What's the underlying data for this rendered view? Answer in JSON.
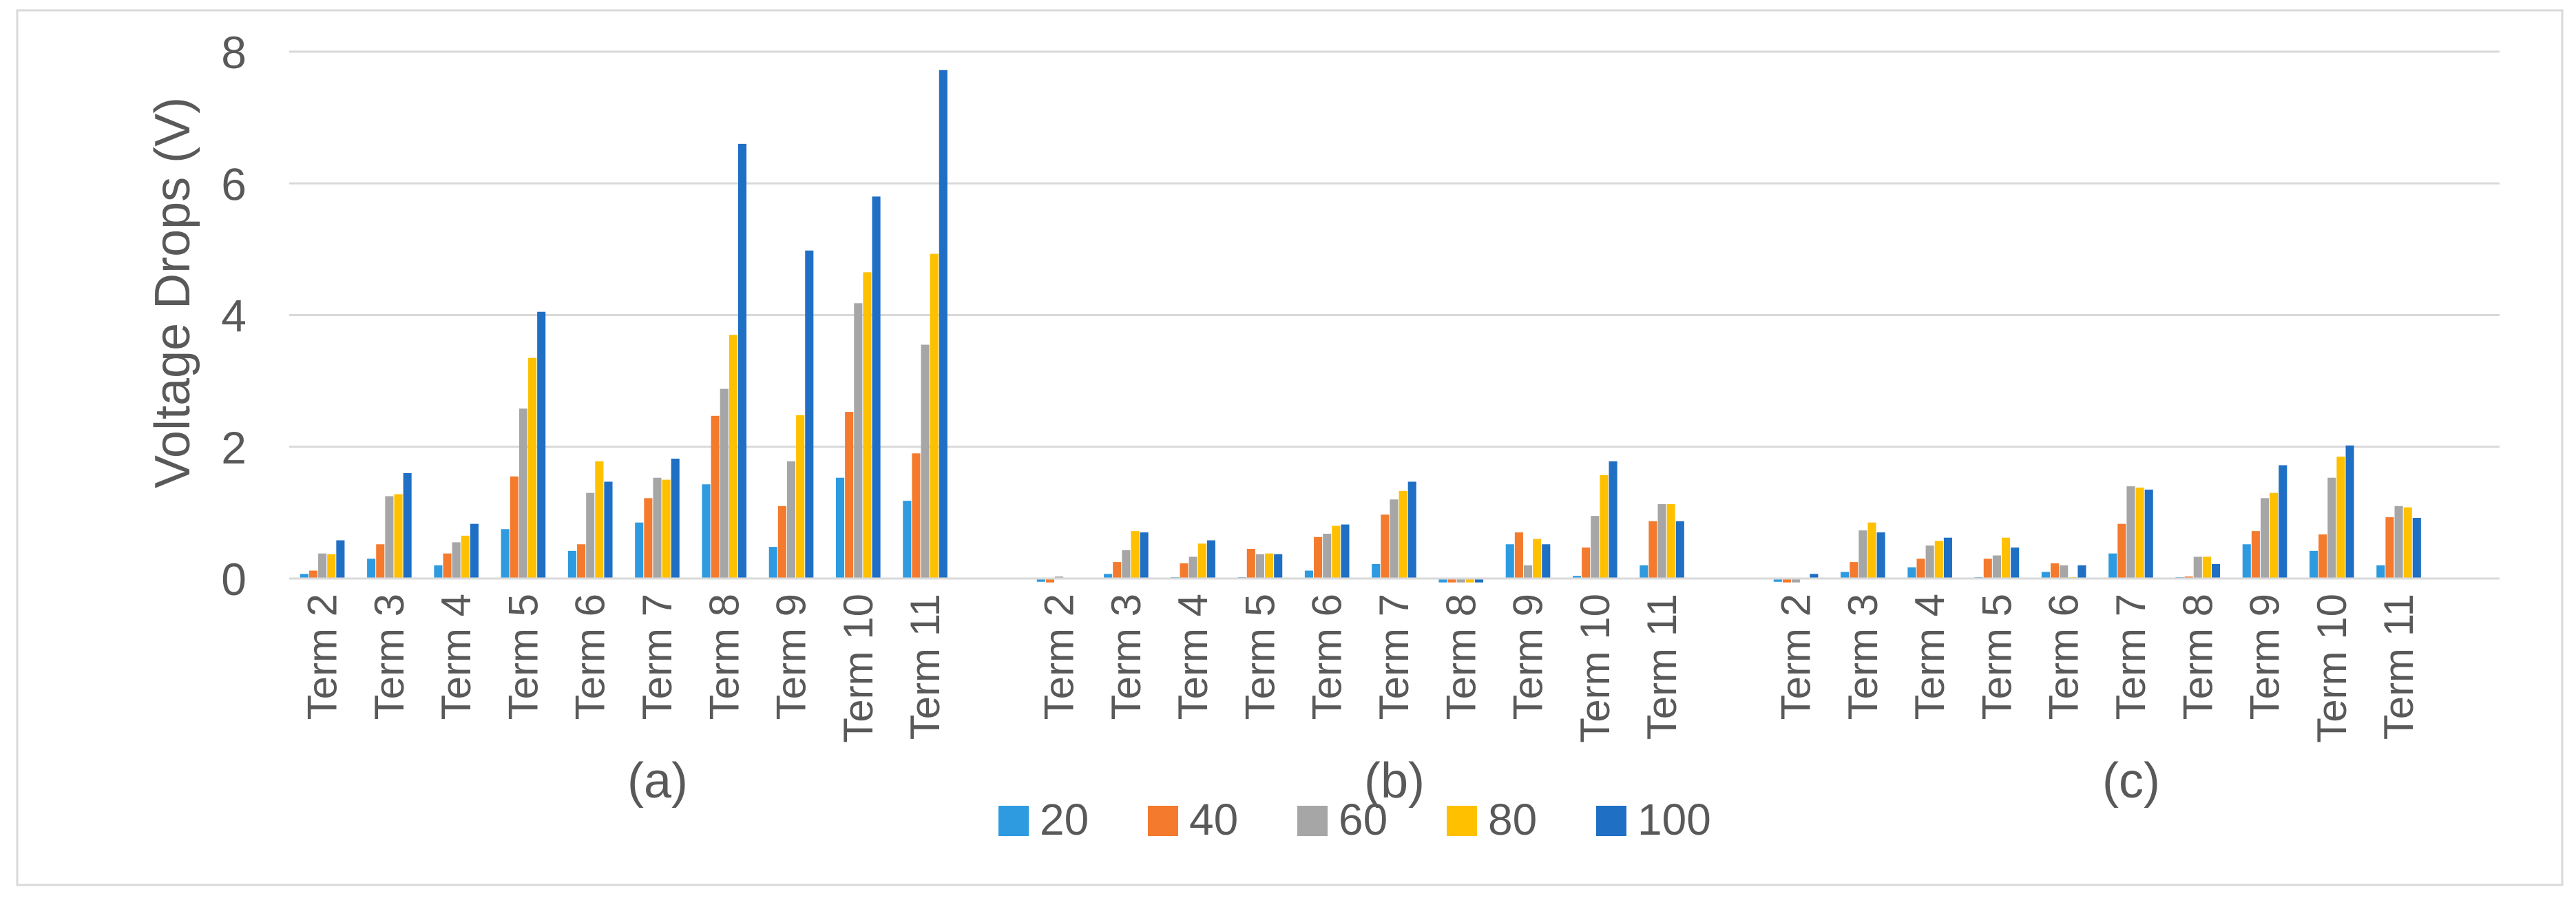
{
  "chart_data": {
    "type": "bar",
    "title": "",
    "xlabel": "",
    "ylabel": "Voltage Drops (V)",
    "ylim": [
      0,
      8
    ],
    "yticks": [
      "0",
      "2",
      "4",
      "6",
      "8"
    ],
    "grid": true,
    "legend_position": "bottom",
    "colors": [
      "#2E9BE0",
      "#F47A2E",
      "#A6A6A6",
      "#FFC000",
      "#1F6FC5"
    ],
    "groups": [
      {
        "label": "(a)",
        "categories": [
          "Term 2",
          "Term 3",
          "Term 4",
          "Term 5",
          "Term 6",
          "Term 7",
          "Term 8",
          "Term 9",
          "Term 10",
          "Term 11"
        ],
        "series": [
          {
            "name": "20",
            "values": [
              0.07,
              0.3,
              0.2,
              0.75,
              0.42,
              0.85,
              1.43,
              0.48,
              1.53,
              1.18
            ]
          },
          {
            "name": "40",
            "values": [
              0.12,
              0.52,
              0.38,
              1.55,
              0.52,
              1.22,
              2.47,
              1.1,
              2.53,
              1.9
            ]
          },
          {
            "name": "60",
            "values": [
              0.38,
              1.25,
              0.55,
              2.58,
              1.3,
              1.53,
              2.88,
              1.78,
              4.18,
              3.55
            ]
          },
          {
            "name": "80",
            "values": [
              0.37,
              1.28,
              0.65,
              3.35,
              1.78,
              1.5,
              3.7,
              2.48,
              4.65,
              4.93
            ]
          },
          {
            "name": "100",
            "values": [
              0.58,
              1.6,
              0.83,
              4.05,
              1.47,
              1.82,
              6.6,
              4.98,
              5.8,
              7.72
            ]
          }
        ]
      },
      {
        "label": "(b)",
        "categories": [
          "Term 2",
          "Term 3",
          "Term 4",
          "Term 5",
          "Term 6",
          "Term 7",
          "Term 8",
          "Term 9",
          "Term 10",
          "Term 11"
        ],
        "series": [
          {
            "name": "20",
            "values": [
              -0.05,
              0.07,
              0.02,
              0.02,
              0.12,
              0.22,
              -0.06,
              0.52,
              0.04,
              0.2
            ]
          },
          {
            "name": "40",
            "values": [
              -0.06,
              0.25,
              0.23,
              0.45,
              0.63,
              0.97,
              -0.06,
              0.7,
              0.47,
              0.87
            ]
          },
          {
            "name": "60",
            "values": [
              0.03,
              0.43,
              0.33,
              0.37,
              0.68,
              1.2,
              -0.06,
              0.2,
              0.95,
              1.13
            ]
          },
          {
            "name": "80",
            "values": [
              0.01,
              0.72,
              0.53,
              0.38,
              0.8,
              1.33,
              -0.06,
              0.6,
              1.57,
              1.13
            ]
          },
          {
            "name": "100",
            "values": [
              0.01,
              0.7,
              0.58,
              0.37,
              0.82,
              1.47,
              -0.06,
              0.52,
              1.78,
              0.87
            ]
          }
        ]
      },
      {
        "label": "(c)",
        "categories": [
          "Term 2",
          "Term 3",
          "Term 4",
          "Term 5",
          "Term 6",
          "Term 7",
          "Term 8",
          "Term 9",
          "Term 10",
          "Term 11"
        ],
        "series": [
          {
            "name": "20",
            "values": [
              -0.05,
              0.1,
              0.17,
              0.02,
              0.1,
              0.38,
              0.02,
              0.52,
              0.42,
              0.2
            ]
          },
          {
            "name": "40",
            "values": [
              -0.06,
              0.25,
              0.3,
              0.3,
              0.23,
              0.83,
              0.03,
              0.72,
              0.67,
              0.93
            ]
          },
          {
            "name": "60",
            "values": [
              -0.06,
              0.73,
              0.5,
              0.35,
              0.2,
              1.4,
              0.33,
              1.22,
              1.53,
              1.1
            ]
          },
          {
            "name": "80",
            "values": [
              0.01,
              0.85,
              0.57,
              0.62,
              0.02,
              1.38,
              0.33,
              1.3,
              1.85,
              1.08
            ]
          },
          {
            "name": "100",
            "values": [
              0.07,
              0.7,
              0.62,
              0.47,
              0.2,
              1.35,
              0.22,
              1.72,
              2.02,
              0.92
            ]
          }
        ]
      }
    ]
  }
}
